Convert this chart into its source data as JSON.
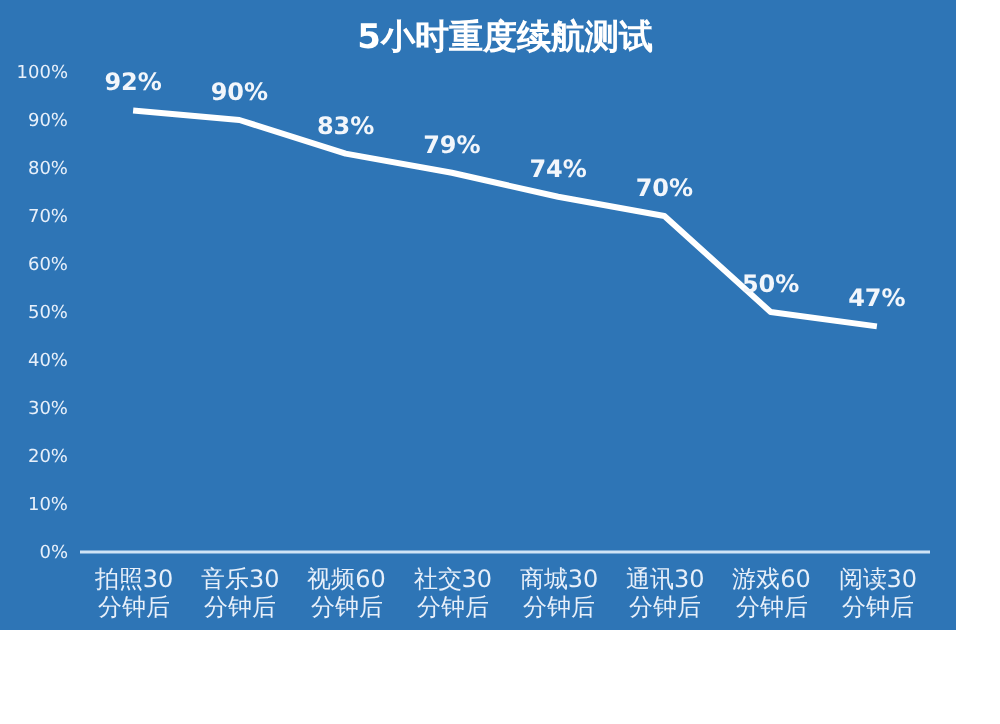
{
  "chart_data": {
    "type": "line",
    "title": "5小时重度续航测试",
    "categories": [
      "拍照30\n分钟后",
      "音乐30\n分钟后",
      "视频60\n分钟后",
      "社交30\n分钟后",
      "商城30\n分钟后",
      "通讯30\n分钟后",
      "游戏60\n分钟后",
      "阅读30\n分钟后"
    ],
    "series": [
      {
        "color": "#ffffff",
        "values": [
          92,
          90,
          83,
          79,
          74,
          70,
          50,
          47
        ],
        "value_labels": [
          "92%",
          "90%",
          "83%",
          "79%",
          "74%",
          "70%",
          "50%",
          "47%"
        ]
      }
    ],
    "ylim": [
      0,
      100
    ],
    "yticks": [
      {
        "value": 0,
        "label": "0%"
      },
      {
        "value": 10,
        "label": "10%"
      },
      {
        "value": 20,
        "label": "20%"
      },
      {
        "value": 30,
        "label": "30%"
      },
      {
        "value": 40,
        "label": "40%"
      },
      {
        "value": 50,
        "label": "50%"
      },
      {
        "value": 60,
        "label": "60%"
      },
      {
        "value": 70,
        "label": "70%"
      },
      {
        "value": 80,
        "label": "80%"
      },
      {
        "value": 90,
        "label": "90%"
      },
      {
        "value": 100,
        "label": "100%"
      }
    ],
    "grid": false,
    "marker": "none",
    "line_style": "solid",
    "legend": false
  }
}
